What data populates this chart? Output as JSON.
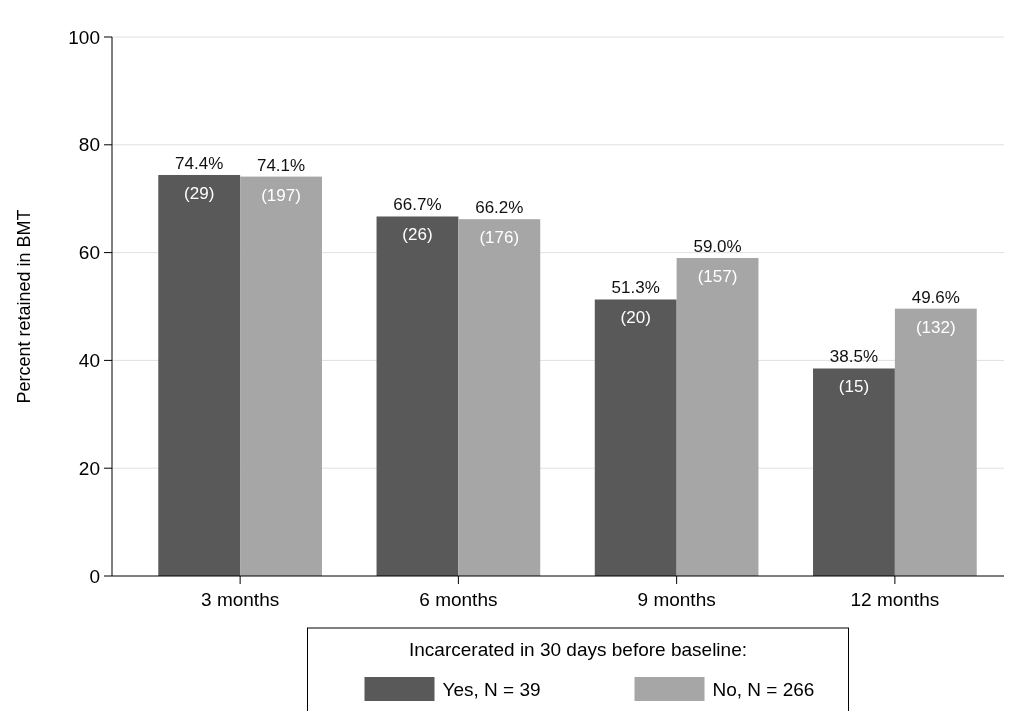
{
  "chart_data": {
    "type": "bar",
    "ylabel": "Percent retained in BMT",
    "legend_title": "Incarcerated in 30 days before baseline:",
    "categories": [
      "3 months",
      "6 months",
      "9 months",
      "12 months"
    ],
    "series": [
      {
        "name": "Yes, N = 39",
        "color": "#595959",
        "values": [
          74.4,
          66.7,
          51.3,
          38.5
        ],
        "value_labels": [
          "74.4%\n(29)",
          "66.7%\n(26)",
          "51.3%\n(20)",
          "38.5%\n(15)"
        ]
      },
      {
        "name": "No, N = 266",
        "color": "#a6a6a6",
        "values": [
          74.1,
          66.2,
          59.0,
          49.6
        ],
        "value_labels": [
          "74.1%\n(197)",
          "66.2%\n(176)",
          "59.0%\n(157)",
          "49.6%\n(132)"
        ]
      }
    ],
    "ylim": [
      0,
      100
    ],
    "yticks": [
      0,
      20,
      40,
      60,
      80,
      100
    ],
    "grid": "y",
    "legend": "bottom"
  }
}
